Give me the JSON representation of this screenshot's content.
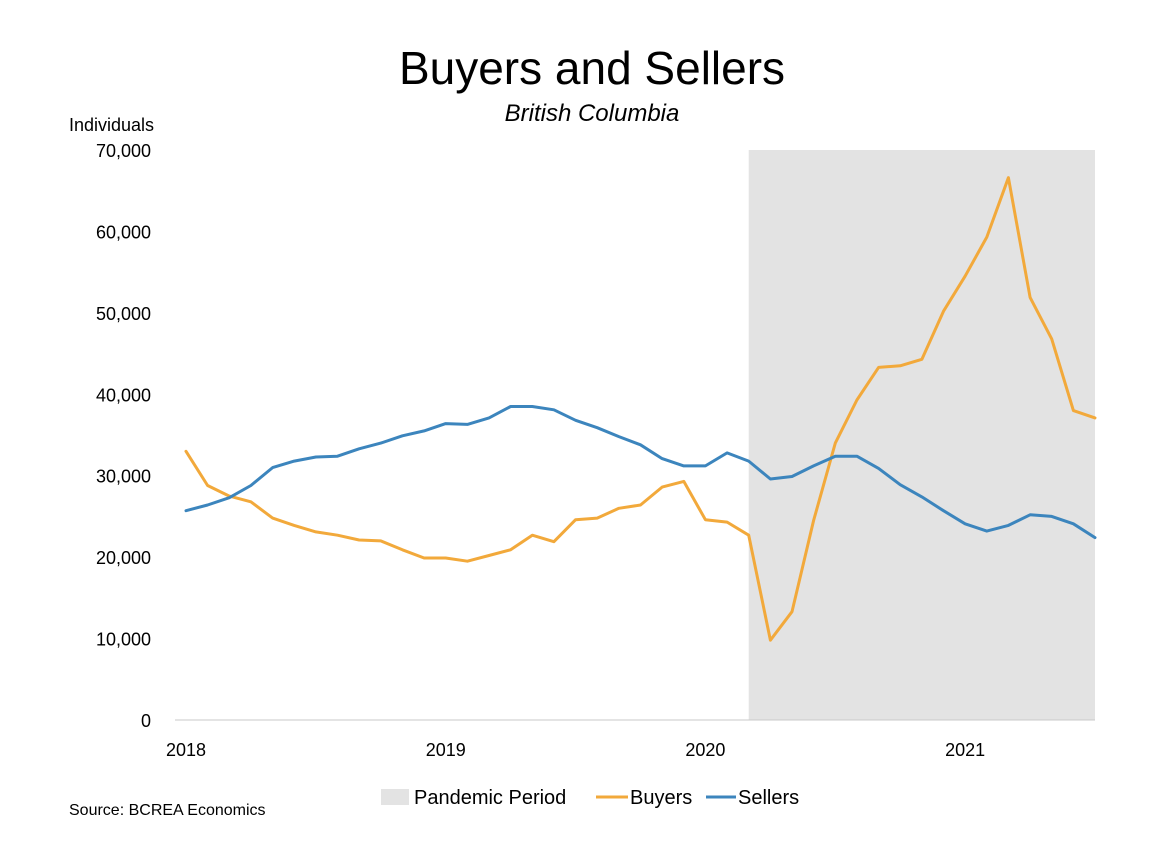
{
  "chart_data": {
    "type": "line",
    "title": "Buyers and Sellers",
    "subtitle": "British Columbia",
    "ylabel": "Individuals",
    "xlabel": "",
    "ylim": [
      0,
      70000
    ],
    "yticks": [
      0,
      10000,
      20000,
      30000,
      40000,
      50000,
      60000,
      70000
    ],
    "ytick_labels": [
      "0",
      "10,000",
      "20,000",
      "30,000",
      "40,000",
      "50,000",
      "60,000",
      "70,000"
    ],
    "xlim": [
      "2018-01",
      "2021-07"
    ],
    "xticks": [
      "2018-01",
      "2019-01",
      "2020-01",
      "2021-01"
    ],
    "xtick_labels": [
      "2018",
      "2019",
      "2020",
      "2021"
    ],
    "grid": false,
    "legend_position": "bottom",
    "shaded_regions": [
      {
        "name": "Pandemic Period",
        "start": "2020-03",
        "end": "2021-07",
        "color": "#e3e3e3"
      }
    ],
    "x": [
      "2018-01",
      "2018-02",
      "2018-03",
      "2018-04",
      "2018-05",
      "2018-06",
      "2018-07",
      "2018-08",
      "2018-09",
      "2018-10",
      "2018-11",
      "2018-12",
      "2019-01",
      "2019-02",
      "2019-03",
      "2019-04",
      "2019-05",
      "2019-06",
      "2019-07",
      "2019-08",
      "2019-09",
      "2019-10",
      "2019-11",
      "2019-12",
      "2020-01",
      "2020-02",
      "2020-03",
      "2020-04",
      "2020-05",
      "2020-06",
      "2020-07",
      "2020-08",
      "2020-09",
      "2020-10",
      "2020-11",
      "2020-12",
      "2021-01",
      "2021-02",
      "2021-03",
      "2021-04",
      "2021-05",
      "2021-06",
      "2021-07"
    ],
    "series": [
      {
        "name": "Buyers",
        "color": "#f2a93b",
        "values": [
          33000,
          28800,
          27500,
          26800,
          24800,
          23900,
          23100,
          22700,
          22100,
          22000,
          20900,
          19900,
          19900,
          19500,
          20200,
          20900,
          22700,
          21900,
          24600,
          24800,
          26000,
          26400,
          28600,
          29300,
          24600,
          24300,
          22700,
          9800,
          13300,
          24500,
          34000,
          39300,
          43300,
          43500,
          44300,
          50200,
          54500,
          59300,
          66600,
          51900,
          46800,
          38000,
          37100
        ]
      },
      {
        "name": "Sellers",
        "color": "#3c85bd",
        "values": [
          25700,
          26400,
          27300,
          28800,
          31000,
          31800,
          32300,
          32400,
          33300,
          34000,
          34900,
          35500,
          36400,
          36300,
          37100,
          38500,
          38500,
          38100,
          36800,
          35900,
          34800,
          33800,
          32100,
          31200,
          31200,
          32800,
          31800,
          29600,
          29900,
          31200,
          32400,
          32400,
          30900,
          28900,
          27400,
          25700,
          24100,
          23200,
          23900,
          25200,
          25000,
          24100,
          22400
        ]
      }
    ],
    "source": "Source: BCREA Economics"
  }
}
